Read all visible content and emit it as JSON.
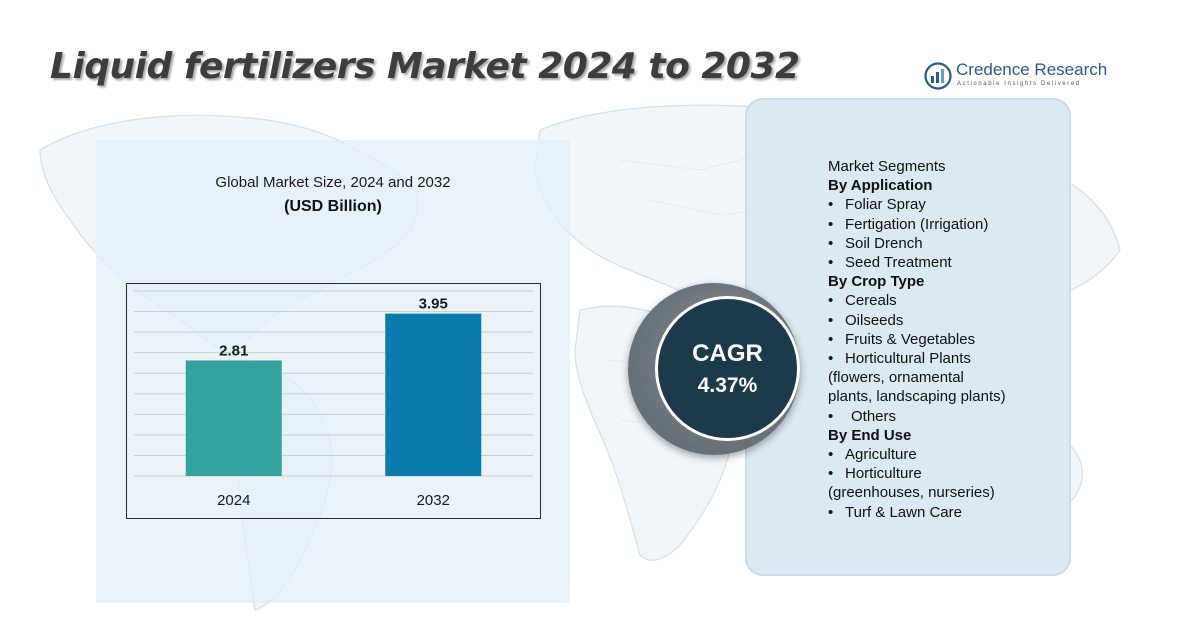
{
  "header": {
    "title": "Liquid fertilizers Market 2024 to 2032"
  },
  "logo": {
    "name": "Credence Research",
    "tagline": "Actionable Insights Delivered",
    "brand_color": "#2d5a86"
  },
  "chart_data": {
    "type": "bar",
    "title": "Global Market Size, 2024 and 2032",
    "subtitle": "(USD Billion)",
    "categories": [
      "2024",
      "2032"
    ],
    "values": [
      2.81,
      3.95
    ],
    "value_labels": [
      "2.81",
      "3.95"
    ],
    "colors": [
      "#33a39d",
      "#0b7bae"
    ],
    "ylim": [
      0,
      4.5
    ],
    "grid": true,
    "legend": "none"
  },
  "cagr": {
    "label": "CAGR",
    "value": "4.37%"
  },
  "segments": {
    "title": "Market Segments",
    "groups": [
      {
        "heading": "By Application",
        "items": [
          "Foliar Spray",
          "Fertigation (Irrigation)",
          "Soil Drench",
          "Seed Treatment"
        ]
      },
      {
        "heading": "By Crop Type",
        "items": [
          "Cereals",
          "Oilseeds",
          "Fruits & Vegetables",
          "Horticultural Plants",
          "(flowers, ornamental",
          "plants, landscaping plants)",
          "Others"
        ]
      },
      {
        "heading": "By End Use",
        "items": [
          "Agriculture",
          "Horticulture",
          "(greenhouses, nurseries)",
          "Turf & Lawn Care"
        ]
      }
    ]
  }
}
